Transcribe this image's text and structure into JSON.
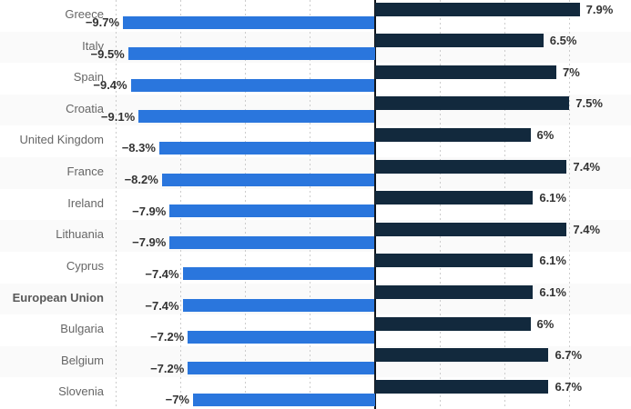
{
  "chart_data": {
    "type": "bar",
    "subtype": "diverging-horizontal",
    "title": "",
    "categories": [
      "Greece",
      "Italy",
      "Spain",
      "Croatia",
      "United Kingdom",
      "France",
      "Ireland",
      "Lithuania",
      "Cyprus",
      "European Union",
      "Bulgaria",
      "Belgium",
      "Slovenia"
    ],
    "bold_categories": [
      "European Union"
    ],
    "series": [
      {
        "name": "left-blue-series",
        "color": "#2a76dd",
        "values": [
          -9.7,
          -9.5,
          -9.4,
          -9.1,
          -8.3,
          -8.2,
          -7.9,
          -7.9,
          -7.4,
          -7.4,
          -7.2,
          -7.2,
          -7
        ],
        "labels": [
          "−9.7%",
          "−9.5%",
          "−9.4%",
          "−9.1%",
          "−8.3%",
          "−8.2%",
          "−7.9%",
          "−7.9%",
          "−7.4%",
          "−7.4%",
          "−7.2%",
          "−7.2%",
          "−7%"
        ]
      },
      {
        "name": "right-navy-series",
        "color": "#12293d",
        "values": [
          7.9,
          6.5,
          7,
          7.5,
          6,
          7.4,
          6.1,
          7.4,
          6.1,
          6.1,
          6,
          6.7,
          6.7
        ],
        "labels": [
          "7.9%",
          "6.5%",
          "7%",
          "7.5%",
          "6%",
          "7.4%",
          "6.1%",
          "7.4%",
          "6.1%",
          "6.1%",
          "6%",
          "6.7%",
          "6.7%"
        ]
      }
    ],
    "axis_ticks_pct": [
      -10,
      -7.5,
      -5,
      -2.5,
      2.5,
      5,
      7.5
    ],
    "xlim": [
      -14.4,
      9.9
    ],
    "grid": true,
    "legend": false,
    "row_striping": "alternate"
  },
  "style": {
    "bar_blue": "#2a76dd",
    "bar_navy": "#12293d",
    "stripe_bg": "#fafafa",
    "gridline_color": "#cccccc",
    "axis_color": "#10151b",
    "category_label_color": "#666666",
    "value_label_color": "#333333"
  }
}
